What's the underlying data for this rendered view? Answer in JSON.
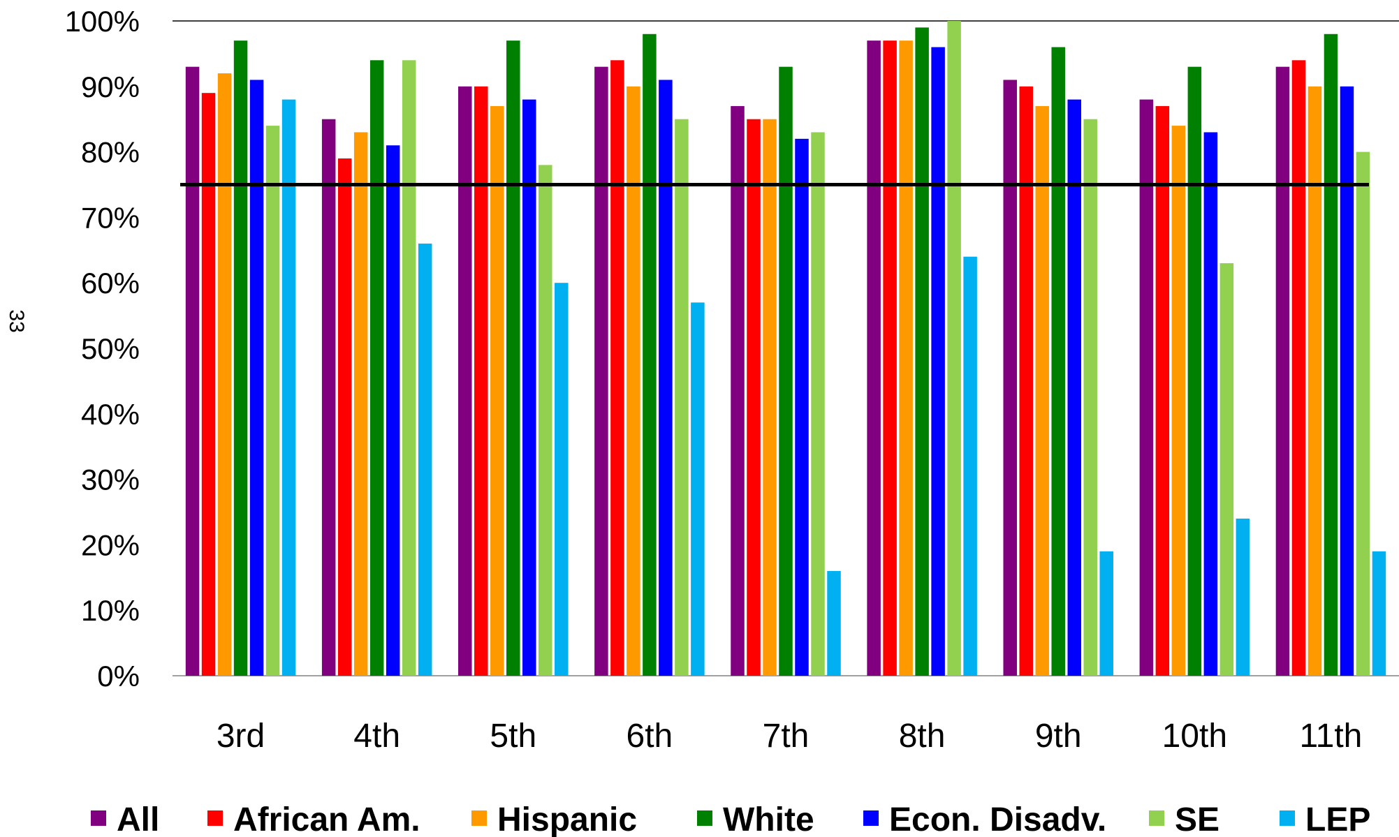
{
  "side_label": "33",
  "chart_data": {
    "type": "bar",
    "categories": [
      "3rd",
      "4th",
      "5th",
      "6th",
      "7th",
      "8th",
      "9th",
      "10th",
      "11th"
    ],
    "series": [
      {
        "name": "All",
        "color": "#800080",
        "values": [
          93,
          85,
          90,
          93,
          87,
          97,
          91,
          88,
          93
        ]
      },
      {
        "name": "African Am.",
        "color": "#FF0000",
        "values": [
          89,
          79,
          90,
          94,
          85,
          97,
          90,
          87,
          94
        ]
      },
      {
        "name": "Hispanic",
        "color": "#FF9900",
        "values": [
          92,
          83,
          87,
          90,
          85,
          97,
          87,
          84,
          90
        ]
      },
      {
        "name": "White",
        "color": "#008000",
        "values": [
          97,
          94,
          97,
          98,
          93,
          99,
          96,
          93,
          98
        ]
      },
      {
        "name": "Econ. Disadv.",
        "color": "#0000FF",
        "values": [
          91,
          81,
          88,
          91,
          82,
          96,
          88,
          83,
          90
        ]
      },
      {
        "name": "SE",
        "color": "#92D050",
        "values": [
          84,
          94,
          78,
          85,
          83,
          100,
          85,
          63,
          80
        ]
      },
      {
        "name": "LEP",
        "color": "#00B0F0",
        "values": [
          88,
          66,
          60,
          57,
          16,
          64,
          19,
          24,
          19
        ]
      }
    ],
    "y_ticks": [
      "0%",
      "10%",
      "20%",
      "30%",
      "40%",
      "50%",
      "60%",
      "70%",
      "80%",
      "90%",
      "100%"
    ],
    "ylim": [
      0,
      100
    ],
    "target_line": 75,
    "legend_position": "bottom",
    "grid": false
  }
}
